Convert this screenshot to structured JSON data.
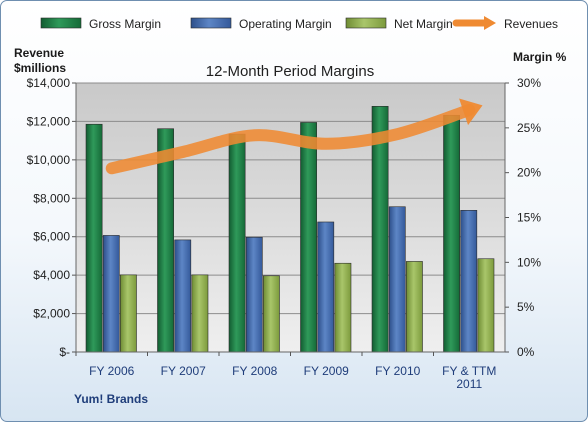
{
  "chart_data": {
    "type": "bar",
    "title": "12-Month Period Margins",
    "ylabel_left": [
      "Revenue",
      "$millions"
    ],
    "ylabel_right": "Margin %",
    "footer": "Yum! Brands",
    "categories": [
      [
        "FY 2006"
      ],
      [
        "FY 2007"
      ],
      [
        "FY 2008"
      ],
      [
        "FY 2009"
      ],
      [
        "FY 2010"
      ],
      [
        "FY & TTM",
        "2011"
      ]
    ],
    "left_axis": {
      "ylim": [
        0,
        14000
      ],
      "ticks": [
        "$-",
        "$2,000",
        "$4,000",
        "$6,000",
        "$8,000",
        "$10,000",
        "$12,000",
        "$14,000"
      ]
    },
    "right_axis": {
      "ylim": [
        0,
        30
      ],
      "ticks": [
        "0%",
        "5%",
        "10%",
        "15%",
        "20%",
        "25%",
        "30%"
      ]
    },
    "grid": true,
    "legend_position": "top",
    "series": [
      {
        "name": "Gross Margin",
        "type": "bar",
        "axis": "right",
        "color": "#1f7a45",
        "values": [
          25.4,
          24.9,
          24.3,
          25.6,
          27.4,
          26.4
        ]
      },
      {
        "name": "Operating Margin",
        "type": "bar",
        "axis": "right",
        "color": "#3d65a6",
        "values": [
          13.0,
          12.5,
          12.8,
          14.5,
          16.2,
          15.8
        ]
      },
      {
        "name": "Net Margin",
        "type": "bar",
        "axis": "right",
        "color": "#8aaa48",
        "values": [
          8.6,
          8.6,
          8.5,
          9.9,
          10.1,
          10.4
        ]
      },
      {
        "name": "Revenues",
        "type": "arrow-line",
        "axis": "left",
        "color": "#ef8a32",
        "values": [
          9561,
          10416,
          11279,
          10836,
          11343,
          12600
        ]
      }
    ]
  }
}
